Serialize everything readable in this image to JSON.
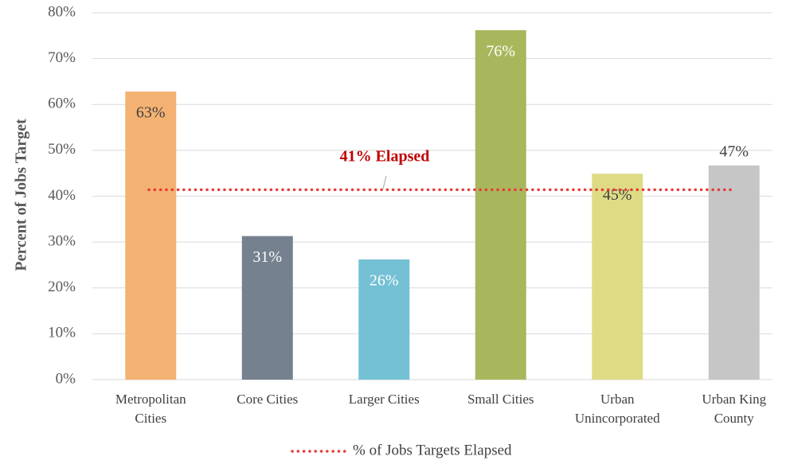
{
  "chart_data": {
    "type": "bar",
    "y_axis_label": "Percent of Jobs Target",
    "categories": [
      "Metropolitan Cities",
      "Core Cities",
      "Larger Cities",
      "Small Cities",
      "Urban Unincorporated",
      "Urban King County"
    ],
    "values": [
      62.8,
      31.3,
      26.2,
      76.2,
      44.9,
      46.7
    ],
    "value_labels": [
      "63%",
      "31%",
      "26%",
      "76%",
      "45%",
      "47%"
    ],
    "colors": [
      "#f4b272",
      "#75818f",
      "#74c0d4",
      "#a9b75c",
      "#dedb84",
      "#c6c6c6"
    ],
    "ylim": [
      0,
      80
    ],
    "yticks": [
      {
        "value": 0,
        "label": "0%"
      },
      {
        "value": 10,
        "label": "10%"
      },
      {
        "value": 20,
        "label": "20%"
      },
      {
        "value": 30,
        "label": "30%"
      },
      {
        "value": 40,
        "label": "40%"
      },
      {
        "value": 50,
        "label": "50%"
      },
      {
        "value": 60,
        "label": "60%"
      },
      {
        "value": 70,
        "label": "70%"
      },
      {
        "value": 80,
        "label": "80%"
      }
    ],
    "grid": true,
    "reference_line": {
      "name": "% of Jobs Targets Elapsed",
      "value": 41.4,
      "color": "#e83a3a",
      "annotation": "41% Elapsed",
      "annotation_color": "#c00000"
    },
    "legend": "bottom"
  }
}
